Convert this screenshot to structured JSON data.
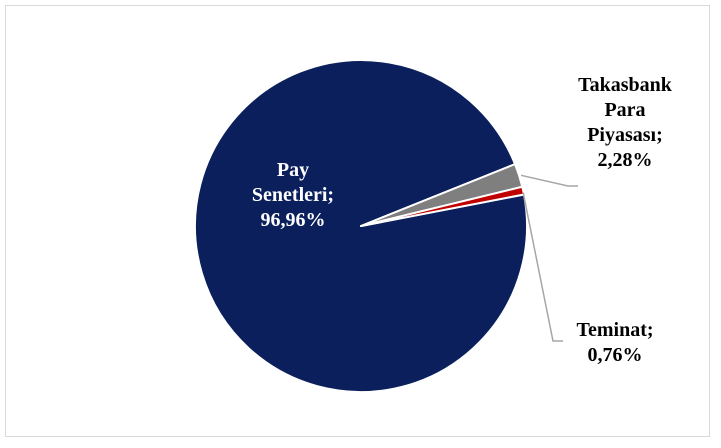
{
  "chart_data": {
    "type": "pie",
    "slices": [
      {
        "label": "Pay Senetleri",
        "value": 96.96,
        "value_text": "96,96%",
        "color": "#0a1f5c",
        "label_lines": [
          "Pay",
          "Senetleri;",
          "96,96%"
        ]
      },
      {
        "label": "Takasbank Para Piyasası",
        "value": 2.28,
        "value_text": "2,28%",
        "color": "#7f7f7f",
        "label_lines": [
          "Takasbank",
          "Para",
          "Piyasası;",
          "2,28%"
        ]
      },
      {
        "label": "Teminat",
        "value": 0.76,
        "value_text": "0,76%",
        "color": "#c00000",
        "label_lines": [
          "Teminat;",
          "0,76%"
        ]
      }
    ],
    "legend": "none",
    "leader_color": "#a6a6a6"
  }
}
